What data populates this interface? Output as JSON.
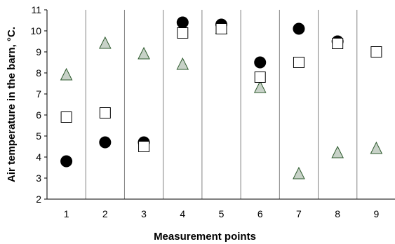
{
  "chart_data": {
    "type": "scatter",
    "xlabel": "Measurement points",
    "ylabel": "Air temperature in the barn, °C.",
    "categories": [
      "1",
      "2",
      "3",
      "4",
      "5",
      "6",
      "7",
      "8",
      "9"
    ],
    "ylim": [
      2,
      11
    ],
    "yticks": [
      "2",
      "3",
      "4",
      "5",
      "6",
      "7",
      "8",
      "9",
      "10",
      "11"
    ],
    "grid": "vertical separators between measurement points",
    "legend": "none",
    "series": [
      {
        "marker": "circle",
        "color": "#000000",
        "values": [
          3.8,
          4.7,
          4.7,
          10.4,
          10.3,
          8.5,
          10.1,
          9.5,
          null
        ]
      },
      {
        "marker": "square",
        "color": "#ffffff",
        "values": [
          5.9,
          6.1,
          4.5,
          9.9,
          10.1,
          7.8,
          8.5,
          9.4,
          9.0
        ]
      },
      {
        "marker": "triangle",
        "color": "#c8d2c8",
        "values": [
          7.9,
          9.4,
          8.9,
          8.4,
          10.1,
          7.3,
          3.2,
          4.2,
          4.4
        ]
      }
    ]
  }
}
